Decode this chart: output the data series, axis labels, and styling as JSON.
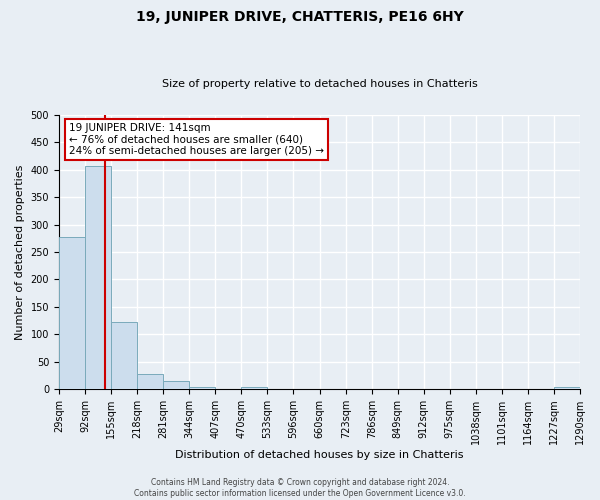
{
  "title": "19, JUNIPER DRIVE, CHATTERIS, PE16 6HY",
  "subtitle": "Size of property relative to detached houses in Chatteris",
  "xlabel": "Distribution of detached houses by size in Chatteris",
  "ylabel": "Number of detached properties",
  "bin_edges": [
    29,
    92,
    155,
    218,
    281,
    344,
    407,
    470,
    533,
    596,
    660,
    723,
    786,
    849,
    912,
    975,
    1038,
    1101,
    1164,
    1227,
    1290
  ],
  "bin_labels": [
    "29sqm",
    "92sqm",
    "155sqm",
    "218sqm",
    "281sqm",
    "344sqm",
    "407sqm",
    "470sqm",
    "533sqm",
    "596sqm",
    "660sqm",
    "723sqm",
    "786sqm",
    "849sqm",
    "912sqm",
    "975sqm",
    "1038sqm",
    "1101sqm",
    "1164sqm",
    "1227sqm",
    "1290sqm"
  ],
  "counts": [
    278,
    407,
    122,
    28,
    14,
    3,
    0,
    3,
    0,
    0,
    0,
    0,
    0,
    0,
    0,
    0,
    0,
    0,
    0,
    3
  ],
  "bar_color": "#ccdded",
  "bar_edge_color": "#7aaabb",
  "property_size": 141,
  "red_line_color": "#cc0000",
  "annotation_line1": "19 JUNIPER DRIVE: 141sqm",
  "annotation_line2": "← 76% of detached houses are smaller (640)",
  "annotation_line3": "24% of semi-detached houses are larger (205) →",
  "annotation_box_color": "#ffffff",
  "annotation_box_edge_color": "#cc0000",
  "ylim": [
    0,
    500
  ],
  "yticks": [
    0,
    50,
    100,
    150,
    200,
    250,
    300,
    350,
    400,
    450,
    500
  ],
  "footer_line1": "Contains HM Land Registry data © Crown copyright and database right 2024.",
  "footer_line2": "Contains public sector information licensed under the Open Government Licence v3.0.",
  "bg_color": "#e8eef4",
  "plot_bg_color": "#e8eef4",
  "grid_color": "#ffffff",
  "title_fontsize": 10,
  "subtitle_fontsize": 8,
  "ylabel_fontsize": 8,
  "xlabel_fontsize": 8,
  "tick_fontsize": 7,
  "annotation_fontsize": 7.5,
  "footer_fontsize": 5.5
}
